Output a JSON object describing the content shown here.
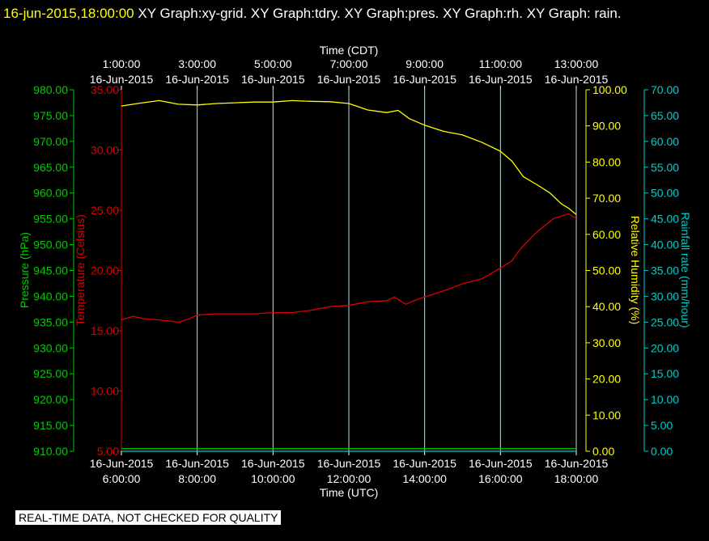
{
  "header": {
    "timestamp": "16-jun-2015,18:00:00",
    "title": "XY Graph:xy-grid.  XY Graph:tdry.  XY Graph:pres.  XY Graph:rh.  XY Graph: rain."
  },
  "footer": {
    "quality_note": "REAL-TIME DATA, NOT CHECKED FOR QUALITY"
  },
  "colors": {
    "pressure": "#00cc00",
    "temperature": "#dd0000",
    "humidity": "#ffff00",
    "rainfall": "#00cccc",
    "grid": "#bbdddd",
    "axis_text": "#ffffff"
  },
  "chart_data": {
    "type": "line",
    "grid": true,
    "xaxis_top": {
      "label": "Time (CDT)",
      "ticks": [
        {
          "time": "1:00:00",
          "date": "16-Jun-2015"
        },
        {
          "time": "3:00:00",
          "date": "16-Jun-2015"
        },
        {
          "time": "5:00:00",
          "date": "16-Jun-2015"
        },
        {
          "time": "7:00:00",
          "date": "16-Jun-2015"
        },
        {
          "time": "9:00:00",
          "date": "16-Jun-2015"
        },
        {
          "time": "11:00:00",
          "date": "16-Jun-2015"
        },
        {
          "time": "13:00:00",
          "date": "16-Jun-2015"
        }
      ]
    },
    "xaxis_bottom": {
      "label": "Time (UTC)",
      "range": [
        6,
        18
      ],
      "ticks": [
        {
          "time": "6:00:00",
          "date": "16-Jun-2015"
        },
        {
          "time": "8:00:00",
          "date": "16-Jun-2015"
        },
        {
          "time": "10:00:00",
          "date": "16-Jun-2015"
        },
        {
          "time": "12:00:00",
          "date": "16-Jun-2015"
        },
        {
          "time": "14:00:00",
          "date": "16-Jun-2015"
        },
        {
          "time": "16:00:00",
          "date": "16-Jun-2015"
        },
        {
          "time": "18:00:00",
          "date": "16-Jun-2015"
        }
      ]
    },
    "yaxes": {
      "pressure": {
        "label": "Pressure (hPa)",
        "range": [
          910,
          980
        ],
        "ticks": [
          "910.00",
          "915.00",
          "920.00",
          "925.00",
          "930.00",
          "935.00",
          "940.00",
          "945.00",
          "950.00",
          "955.00",
          "960.00",
          "965.00",
          "970.00",
          "975.00",
          "980.00"
        ]
      },
      "temperature": {
        "label": "Temperature (Celsius)",
        "range": [
          5,
          35
        ],
        "ticks": [
          "5.00",
          "10.00",
          "15.00",
          "20.00",
          "25.00",
          "30.00",
          "35.00"
        ]
      },
      "humidity": {
        "label": "Relative Humidity (%)",
        "range": [
          0,
          100
        ],
        "ticks": [
          "0.00",
          "10.00",
          "20.00",
          "30.00",
          "40.00",
          "50.00",
          "60.00",
          "70.00",
          "80.00",
          "90.00",
          "100.00"
        ]
      },
      "rainfall": {
        "label": "Rainfall rate (mm/hour)",
        "range": [
          0,
          70
        ],
        "ticks": [
          "0.00",
          "5.00",
          "10.00",
          "15.00",
          "20.00",
          "25.00",
          "30.00",
          "35.00",
          "40.00",
          "45.00",
          "50.00",
          "55.00",
          "60.00",
          "65.00",
          "70.00"
        ]
      }
    },
    "series": [
      {
        "name": "tdry",
        "axis": "temperature",
        "x": [
          6.0,
          6.3,
          6.6,
          7.0,
          7.3,
          7.5,
          7.8,
          8.0,
          8.5,
          9.0,
          9.5,
          10.0,
          10.5,
          11.0,
          11.5,
          12.0,
          12.5,
          13.0,
          13.2,
          13.5,
          13.8,
          14.0,
          14.5,
          15.0,
          15.5,
          16.0,
          16.3,
          16.5,
          16.8,
          17.0,
          17.2,
          17.4,
          17.6,
          17.8,
          18.0
        ],
        "values": [
          15.9,
          16.2,
          16.0,
          15.9,
          15.8,
          15.7,
          16.0,
          16.3,
          16.4,
          16.4,
          16.4,
          16.5,
          16.5,
          16.7,
          17.0,
          17.1,
          17.4,
          17.5,
          17.8,
          17.2,
          17.6,
          17.8,
          18.3,
          18.9,
          19.3,
          20.2,
          20.8,
          21.7,
          22.7,
          23.3,
          23.8,
          24.3,
          24.5,
          24.7,
          24.3
        ]
      },
      {
        "name": "rh",
        "axis": "humidity",
        "x": [
          6.0,
          6.5,
          7.0,
          7.5,
          8.0,
          8.5,
          9.0,
          9.5,
          10.0,
          10.5,
          11.0,
          11.5,
          12.0,
          12.5,
          13.0,
          13.3,
          13.6,
          14.0,
          14.2,
          14.5,
          15.0,
          15.5,
          16.0,
          16.3,
          16.6,
          17.0,
          17.3,
          17.6,
          17.8,
          18.0
        ],
        "values": [
          95.5,
          96.3,
          97.0,
          96.0,
          95.8,
          96.2,
          96.4,
          96.6,
          96.6,
          97.0,
          96.8,
          96.7,
          96.2,
          94.4,
          93.7,
          94.3,
          92.0,
          90.2,
          89.5,
          88.5,
          87.5,
          85.5,
          83.0,
          80.3,
          76.0,
          73.5,
          71.5,
          68.5,
          67.2,
          65.5
        ]
      },
      {
        "name": "pres",
        "axis": "pressure",
        "x": [
          6.0,
          18.0
        ],
        "values": [
          910.5,
          910.5
        ]
      },
      {
        "name": "rain",
        "axis": "rainfall",
        "x": [
          6.0,
          18.0
        ],
        "values": [
          0.0,
          0.0
        ]
      }
    ]
  }
}
